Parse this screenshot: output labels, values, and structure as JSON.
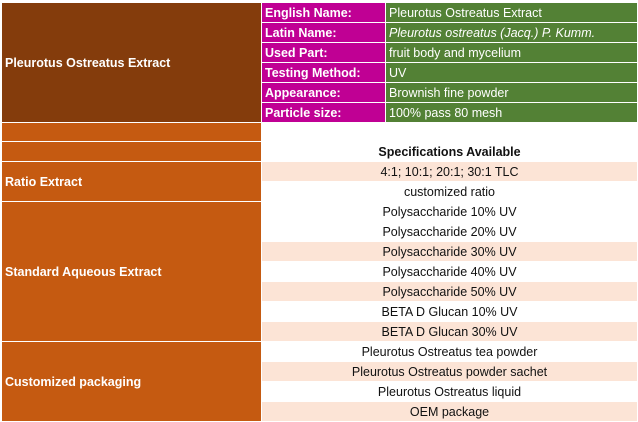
{
  "product": {
    "name": "Pleurotus Ostreatus Extract",
    "info": [
      {
        "label": "English Name:",
        "value": "Pleurotus Ostreatus Extract",
        "italic": false
      },
      {
        "label": "Latin Name:",
        "value": "Pleurotus ostreatus (Jacq.) P. Kumm.",
        "italic": true
      },
      {
        "label": "Used Part:",
        "value": "fruit body and mycelium",
        "italic": false
      },
      {
        "label": "Testing Method:",
        "value": "UV",
        "italic": false
      },
      {
        "label": "Appearance:",
        "value": "Brownish fine powder",
        "italic": false
      },
      {
        "label": "Particle size:",
        "value": "100% pass 80 mesh",
        "italic": false
      }
    ]
  },
  "specs_header": "Specifications Available",
  "groups": [
    {
      "name": "Ratio Extract",
      "items": [
        "4:1; 10:1; 20:1; 30:1 TLC",
        "customized ratio"
      ]
    },
    {
      "name": "Standard Aqueous Extract",
      "items": [
        "Polysaccharide 10% UV",
        "Polysaccharide 20% UV",
        "Polysaccharide 30% UV",
        "Polysaccharide 40% UV",
        "Polysaccharide 50% UV",
        "BETA D Glucan 10% UV",
        "BETA D Glucan 30% UV"
      ]
    },
    {
      "name": "Customized packaging",
      "items": [
        "Pleurotus Ostreatus tea powder",
        "Pleurotus Ostreatus powder sachet",
        "Pleurotus Ostreatus liquid",
        "OEM package"
      ]
    }
  ],
  "colors": {
    "dark_brown": "#843c0c",
    "orange": "#c55a11",
    "magenta": "#c00094",
    "green": "#538135",
    "peach": "#fce4d6"
  }
}
